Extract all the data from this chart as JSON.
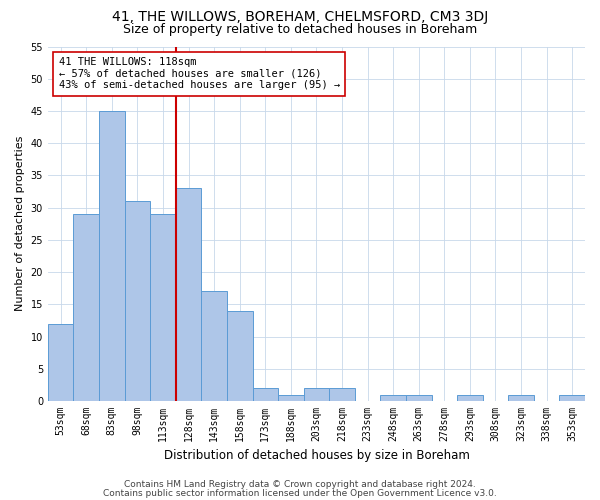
{
  "title": "41, THE WILLOWS, BOREHAM, CHELMSFORD, CM3 3DJ",
  "subtitle": "Size of property relative to detached houses in Boreham",
  "xlabel": "Distribution of detached houses by size in Boreham",
  "ylabel": "Number of detached properties",
  "categories": [
    "53sqm",
    "68sqm",
    "83sqm",
    "98sqm",
    "113sqm",
    "128sqm",
    "143sqm",
    "158sqm",
    "173sqm",
    "188sqm",
    "203sqm",
    "218sqm",
    "233sqm",
    "248sqm",
    "263sqm",
    "278sqm",
    "293sqm",
    "308sqm",
    "323sqm",
    "338sqm",
    "353sqm"
  ],
  "values": [
    12,
    29,
    45,
    31,
    29,
    33,
    17,
    14,
    2,
    1,
    2,
    2,
    0,
    1,
    1,
    0,
    1,
    0,
    1,
    0,
    1
  ],
  "bar_color": "#aec6e8",
  "bar_edgecolor": "#5b9bd5",
  "vline_x": 4.5,
  "vline_color": "#cc0000",
  "annotation_line1": "41 THE WILLOWS: 118sqm",
  "annotation_line2": "← 57% of detached houses are smaller (126)",
  "annotation_line3": "43% of semi-detached houses are larger (95) →",
  "annotation_box_edgecolor": "#cc0000",
  "ylim": [
    0,
    55
  ],
  "yticks": [
    0,
    5,
    10,
    15,
    20,
    25,
    30,
    35,
    40,
    45,
    50,
    55
  ],
  "footer1": "Contains HM Land Registry data © Crown copyright and database right 2024.",
  "footer2": "Contains public sector information licensed under the Open Government Licence v3.0.",
  "bg_color": "#ffffff",
  "grid_color": "#c8d8ea",
  "title_fontsize": 10,
  "subtitle_fontsize": 9,
  "ylabel_fontsize": 8,
  "xlabel_fontsize": 8.5,
  "tick_fontsize": 7,
  "annotation_fontsize": 7.5,
  "footer_fontsize": 6.5
}
